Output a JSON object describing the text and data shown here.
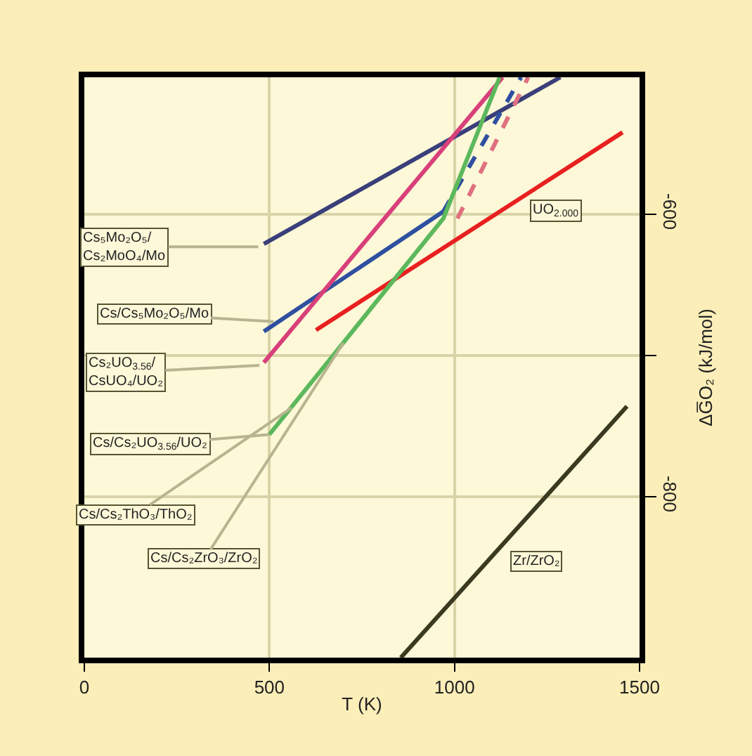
{
  "chart_data": {
    "type": "line",
    "xlabel": "T (K)",
    "ylabel": "ΔG̅O₂ (kJ/mol)",
    "xlim": [
      0,
      1500
    ],
    "ylim": [
      -914,
      -503
    ],
    "xticks": [
      0,
      500,
      1000,
      1500
    ],
    "yticks": [
      -600,
      {
        "value": -700,
        "label": null
      },
      -800
    ],
    "grid": true,
    "marker": "none",
    "series": [
      {
        "color": "#3a3f7a",
        "x": [
          485,
          1286
        ],
        "values": [
          -621,
          -503
        ]
      },
      {
        "color": "#2f4fa0",
        "x": [
          485,
          970
        ],
        "values": [
          -683,
          -598
        ]
      },
      {
        "color": "#2f4fa0",
        "line_style": "dashed",
        "x": [
          970,
          1180
        ],
        "values": [
          -598,
          -503
        ]
      },
      {
        "color": "#e82020",
        "x": [
          626,
          1454
        ],
        "values": [
          -682,
          -542
        ]
      },
      {
        "color": "#d8407a",
        "x": [
          485,
          1130
        ],
        "values": [
          -705,
          -503
        ]
      },
      {
        "color": "#e07080",
        "line_style": "dashed",
        "x": [
          1008,
          1199
        ],
        "values": [
          -603,
          -503
        ]
      },
      {
        "color": "#5cb85c",
        "x": [
          500,
          970,
          1122
        ],
        "values": [
          -756,
          -603,
          -503
        ]
      },
      {
        "color": "#3a3a20",
        "x": [
          855,
          1466
        ],
        "values": [
          -914,
          -736
        ]
      }
    ],
    "annotations": [
      {
        "text": "Cs₅Mo₂O₅/\nCs₂MoO₄/Mo",
        "x": 470,
        "y": -623
      },
      {
        "text": "Cs/Cs₅Mo₂O₅/Mo",
        "x": 511,
        "y": -676
      },
      {
        "text": "Cs₂UO$_{3.56}$/\nCsUO₄/UO₂",
        "x": 473,
        "y": -707
      },
      {
        "text": "Cs/Cs₂UO$_{3.56}$/UO₂",
        "x": 500,
        "y": -756
      },
      {
        "text": "Cs/Cs₂ThO₃/ThO₂",
        "x": 560,
        "y": -737
      },
      {
        "text": "Cs/Cs₂ZrO₃/ZrO₂",
        "x": 700,
        "y": -691
      },
      {
        "text": "UO$_{2.000}$",
        "x": 1275,
        "y": -598
      },
      {
        "text": "Zr/ZrO₂",
        "x": 1219,
        "y": -846
      }
    ]
  }
}
